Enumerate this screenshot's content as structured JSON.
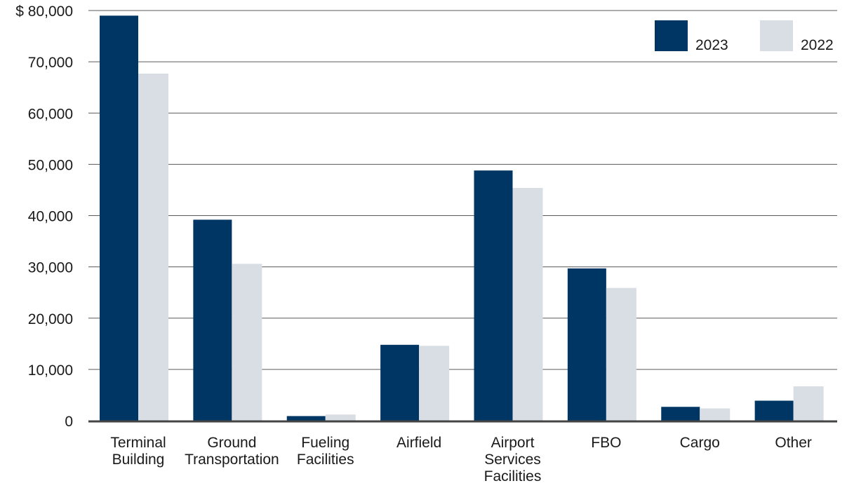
{
  "chart_data": {
    "type": "bar",
    "title": "",
    "xlabel": "",
    "ylabel": "",
    "ylim": [
      0,
      80000
    ],
    "yticks": [
      0,
      10000,
      20000,
      30000,
      40000,
      50000,
      60000,
      70000,
      80000
    ],
    "ytick_labels": [
      "0",
      "10,000",
      "20,000",
      "30,000",
      "40,000",
      "50,000",
      "60,000",
      "70,000",
      "$ 80,000"
    ],
    "grid": true,
    "legend_position": "top-right",
    "categories": [
      [
        "Terminal",
        "Building"
      ],
      [
        "Ground",
        "Transportation"
      ],
      [
        "Fueling",
        "Facilities"
      ],
      [
        "Airfield"
      ],
      [
        "Airport",
        "Services",
        "Facilities"
      ],
      [
        "FBO"
      ],
      [
        "Cargo"
      ],
      [
        "Other"
      ]
    ],
    "series": [
      {
        "name": "2023",
        "color": "#003663",
        "values": [
          79000,
          39200,
          900,
          14800,
          48800,
          29700,
          2700,
          3900
        ]
      },
      {
        "name": "2022",
        "color": "#d9dee4",
        "values": [
          67700,
          30600,
          1200,
          14600,
          45400,
          25900,
          2400,
          6700
        ]
      }
    ]
  }
}
